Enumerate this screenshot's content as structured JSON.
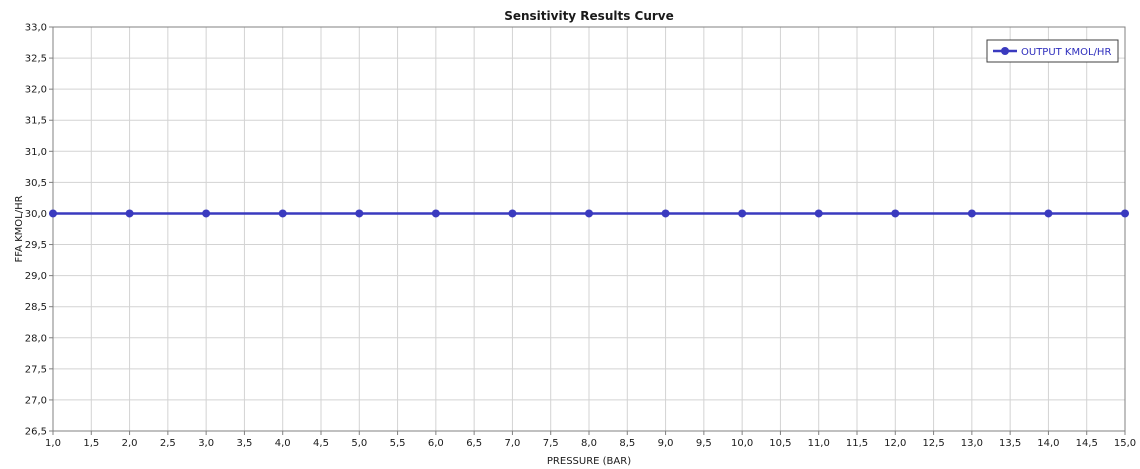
{
  "chart_data": {
    "type": "line",
    "title": "Sensitivity Results Curve",
    "xlabel": "PRESSURE (BAR)",
    "ylabel": "FFA KMOL/HR",
    "xlim": [
      1.0,
      15.0
    ],
    "ylim": [
      26.5,
      33.0
    ],
    "x_ticks": [
      "1,0",
      "1,5",
      "2,0",
      "2,5",
      "3,0",
      "3,5",
      "4,0",
      "4,5",
      "5,0",
      "5,5",
      "6,0",
      "6,5",
      "7,0",
      "7,5",
      "8,0",
      "8,5",
      "9,0",
      "9,5",
      "10,0",
      "10,5",
      "11,0",
      "11,5",
      "12,0",
      "12,5",
      "13,0",
      "13,5",
      "14,0",
      "14,5",
      "15,0"
    ],
    "y_ticks": [
      "26,5",
      "27,0",
      "27,5",
      "28,0",
      "28,5",
      "29,0",
      "29,5",
      "30,0",
      "30,5",
      "31,0",
      "31,5",
      "32,0",
      "32,5",
      "33,0"
    ],
    "grid": true,
    "legend_position": "top-right",
    "series": [
      {
        "name": "OUTPUT KMOL/HR",
        "color": "#3a3abf",
        "x": [
          1,
          2,
          3,
          4,
          5,
          6,
          7,
          8,
          9,
          10,
          11,
          12,
          13,
          14,
          15
        ],
        "values": [
          30.0,
          30.0,
          30.0,
          30.0,
          30.0,
          30.0,
          30.0,
          30.0,
          30.0,
          30.0,
          30.0,
          30.0,
          30.0,
          30.0,
          30.0
        ]
      }
    ]
  }
}
